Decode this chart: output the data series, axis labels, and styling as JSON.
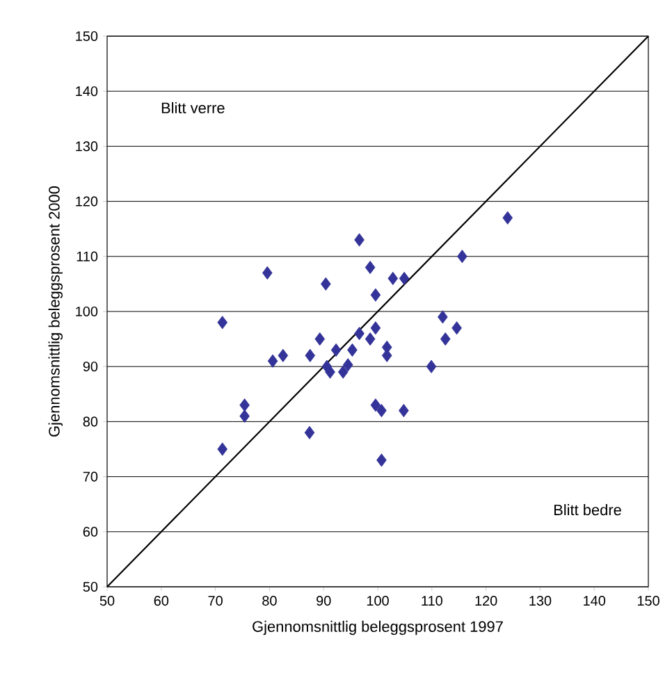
{
  "chart_data": {
    "type": "scatter",
    "xlabel": "Gjennomsnittlig beleggsprosent 1997",
    "ylabel": "Gjennomsnittlig beleggsprosent 2000",
    "xlim": [
      50,
      150
    ],
    "ylim": [
      50,
      150
    ],
    "xticks": [
      50,
      60,
      70,
      80,
      90,
      100,
      110,
      120,
      130,
      140,
      150
    ],
    "yticks": [
      50,
      60,
      70,
      80,
      90,
      100,
      110,
      120,
      130,
      140,
      150
    ],
    "grid": "y",
    "marker": "diamond",
    "annotations": [
      "Blitt verre",
      "Blitt bedre"
    ],
    "series": [
      {
        "color": "#333399",
        "x": [
          124,
          96.6,
          115.6,
          79.6,
          98.6,
          90.4,
          102.8,
          104.9,
          99.6,
          71.3,
          112,
          114.6,
          112.5,
          99.6,
          96.6,
          98.6,
          89.3,
          92.3,
          95.3,
          101.7,
          101.7,
          80.6,
          82.5,
          87.5,
          90.6,
          91.2,
          93.6,
          94.5,
          109.9,
          99.6,
          100.7,
          104.8,
          75.4,
          75.4,
          87.4,
          71.3,
          100.7
        ],
        "values": [
          117,
          113,
          110,
          107,
          108,
          105,
          106,
          106,
          103,
          98,
          99,
          97,
          95,
          97,
          96,
          95,
          95,
          93,
          93,
          93.5,
          92,
          91,
          92,
          92,
          90,
          89,
          89,
          90.3,
          90,
          83,
          82,
          82,
          83,
          81,
          78,
          75,
          73
        ]
      },
      {
        "type": "line",
        "color": "#000000",
        "marker": "none",
        "line_style": "solid",
        "x": [
          50,
          150
        ],
        "values": [
          50,
          150
        ]
      }
    ]
  }
}
